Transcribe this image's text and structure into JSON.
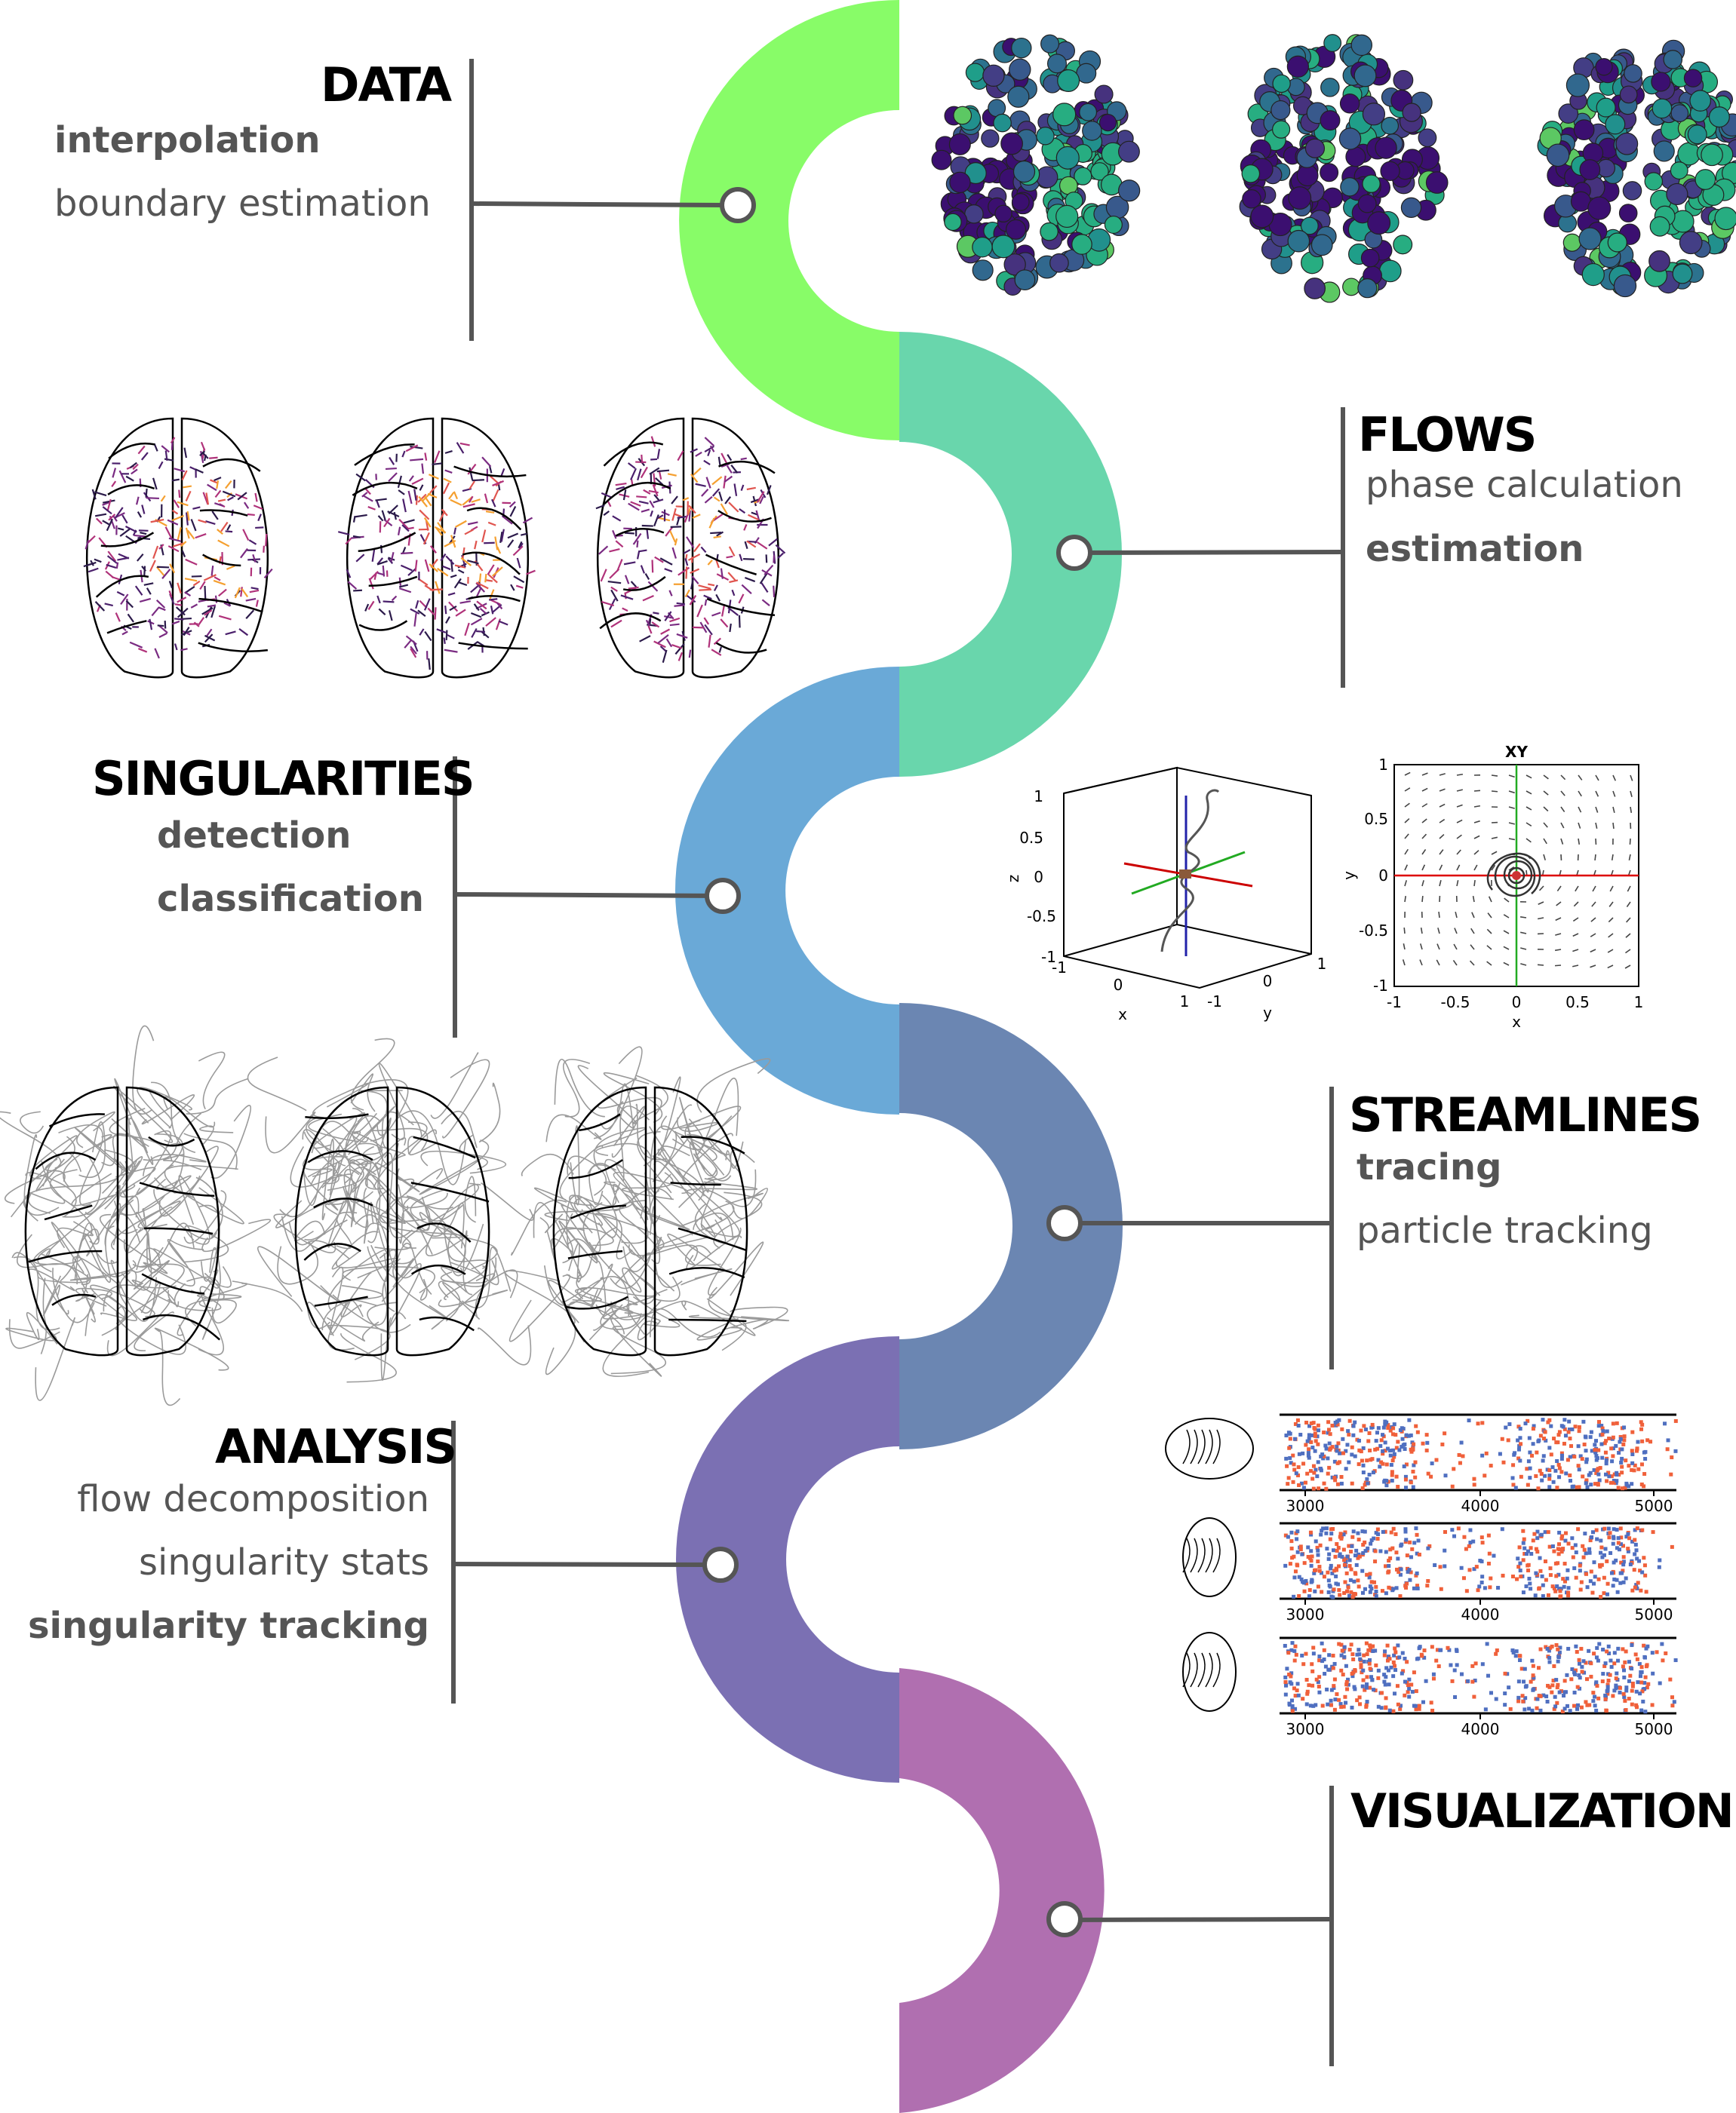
{
  "stages": [
    {
      "id": "data",
      "title": "DATA",
      "color": "#88fc68",
      "items": [
        {
          "text": "interpolation",
          "bold": true
        },
        {
          "text": "boundary estimation",
          "bold": false
        }
      ]
    },
    {
      "id": "flows",
      "title": "FLOWS",
      "color": "#69d6ac",
      "items": [
        {
          "text": "phase calculation",
          "bold": false
        },
        {
          "text": "estimation",
          "bold": true
        }
      ]
    },
    {
      "id": "singularities",
      "title": "SINGULARITIES",
      "color": "#6aa9d7",
      "items": [
        {
          "text": "detection",
          "bold": true
        },
        {
          "text": "classification",
          "bold": true
        }
      ]
    },
    {
      "id": "streamlines",
      "title": "STREAMLINES",
      "color": "#6b86b2",
      "items": [
        {
          "text": "tracing",
          "bold": true
        },
        {
          "text": "particle tracking",
          "bold": false
        }
      ]
    },
    {
      "id": "analysis",
      "title": "ANALYSIS",
      "color": "#7b70b3",
      "items": [
        {
          "text": "flow decomposition",
          "bold": false
        },
        {
          "text": "singularity stats",
          "bold": false
        },
        {
          "text": "singularity tracking",
          "bold": true
        }
      ]
    },
    {
      "id": "visualization",
      "title": "VISUALIZATION",
      "color": "#b06fb0",
      "items": []
    }
  ],
  "plot3d": {
    "xlabel": "x",
    "ylabel": "y",
    "zlabel": "z",
    "z_ticks": [
      "1",
      "0.5",
      "0",
      "-0.5",
      "-1"
    ],
    "x_ticks": [
      "-1",
      "0",
      "1"
    ],
    "y_ticks": [
      "-1",
      "0",
      "1"
    ]
  },
  "phase_plot": {
    "title": "XY",
    "xlabel": "x",
    "ylabel": "y",
    "x_ticks": [
      "-1",
      "-0.5",
      "0",
      "0.5",
      "1"
    ],
    "y_ticks": [
      "1",
      "0.5",
      "0",
      "-0.5",
      "-1"
    ]
  },
  "raster_panels": {
    "x_ticks": [
      "3000",
      "4000",
      "5000"
    ]
  },
  "colors": {
    "connector": "#555555",
    "raster_red": "#f0603a",
    "raster_blue": "#4f6fc0"
  }
}
